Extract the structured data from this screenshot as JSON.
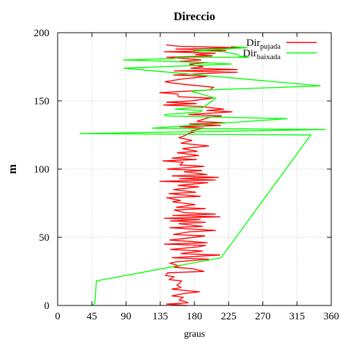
{
  "chart_data": {
    "type": "line",
    "title": "Direccio",
    "xlabel": "graus",
    "ylabel": "m",
    "xlim": [
      0,
      360
    ],
    "ylim": [
      0,
      200
    ],
    "xticks": [
      0,
      45,
      90,
      135,
      180,
      225,
      270,
      315,
      360
    ],
    "yticks": [
      0,
      50,
      100,
      150,
      200
    ],
    "grid": true,
    "legend_position": "top-right",
    "colors": {
      "pujada": "#ff0000",
      "baixada": "#00ff00"
    },
    "series": [
      {
        "name": "Dir",
        "name_sub": "pujada",
        "color": "#ff0000",
        "points": [
          [
            170,
            0
          ],
          [
            143,
            1
          ],
          [
            172,
            2
          ],
          [
            160,
            4
          ],
          [
            165,
            6
          ],
          [
            150,
            7
          ],
          [
            168,
            9
          ],
          [
            187,
            10
          ],
          [
            150,
            12
          ],
          [
            162,
            13
          ],
          [
            157,
            15
          ],
          [
            160,
            16
          ],
          [
            163,
            18
          ],
          [
            147,
            19
          ],
          [
            153,
            21
          ],
          [
            142,
            22
          ],
          [
            145,
            24
          ],
          [
            193,
            25
          ],
          [
            177,
            27
          ],
          [
            153,
            28
          ],
          [
            160,
            29
          ],
          [
            148,
            31
          ],
          [
            156,
            32
          ],
          [
            199,
            34
          ],
          [
            150,
            35
          ],
          [
            214,
            37
          ],
          [
            162,
            38
          ],
          [
            191,
            40
          ],
          [
            148,
            41
          ],
          [
            185,
            43
          ],
          [
            195,
            44
          ],
          [
            140,
            45
          ],
          [
            197,
            46
          ],
          [
            147,
            48
          ],
          [
            165,
            49
          ],
          [
            194,
            51
          ],
          [
            152,
            52
          ],
          [
            173,
            54
          ],
          [
            208,
            55
          ],
          [
            147,
            57
          ],
          [
            191,
            58
          ],
          [
            159,
            60
          ],
          [
            195,
            61
          ],
          [
            148,
            62
          ],
          [
            188,
            63
          ],
          [
            140,
            64
          ],
          [
            214,
            65
          ],
          [
            151,
            66
          ],
          [
            208,
            67
          ],
          [
            168,
            68
          ],
          [
            153,
            70
          ],
          [
            195,
            71
          ],
          [
            156,
            72
          ],
          [
            181,
            74
          ],
          [
            151,
            76
          ],
          [
            162,
            77
          ],
          [
            143,
            79
          ],
          [
            188,
            80
          ],
          [
            146,
            82
          ],
          [
            182,
            83
          ],
          [
            152,
            85
          ],
          [
            186,
            87
          ],
          [
            158,
            88
          ],
          [
            198,
            90
          ],
          [
            134,
            91
          ],
          [
            208,
            92
          ],
          [
            160,
            93
          ],
          [
            212,
            94
          ],
          [
            150,
            95
          ],
          [
            197,
            96
          ],
          [
            166,
            98
          ],
          [
            190,
            99
          ],
          [
            144,
            100
          ],
          [
            193,
            102
          ],
          [
            161,
            103
          ],
          [
            165,
            105
          ],
          [
            138,
            106
          ],
          [
            183,
            107
          ],
          [
            150,
            108
          ],
          [
            186,
            110
          ],
          [
            157,
            112
          ],
          [
            184,
            113
          ],
          [
            164,
            115
          ],
          [
            199,
            117
          ],
          [
            162,
            119
          ],
          [
            177,
            121
          ],
          [
            160,
            123
          ],
          [
            169,
            125
          ],
          [
            171,
            126
          ],
          [
            179,
            127
          ],
          [
            176,
            128
          ],
          [
            193,
            130
          ],
          [
            160,
            131
          ],
          [
            215,
            132
          ],
          [
            173,
            133
          ],
          [
            220,
            134
          ],
          [
            183,
            135
          ],
          [
            200,
            138
          ],
          [
            216,
            139
          ],
          [
            172,
            140
          ],
          [
            230,
            142
          ],
          [
            196,
            143
          ],
          [
            219,
            144
          ],
          [
            186,
            146
          ],
          [
            139,
            147
          ],
          [
            183,
            148
          ],
          [
            143,
            149
          ],
          [
            175,
            150
          ],
          [
            204,
            152
          ],
          [
            159,
            153
          ],
          [
            158,
            155
          ],
          [
            134,
            156
          ],
          [
            200,
            158
          ],
          [
            205,
            160
          ],
          [
            169,
            162
          ],
          [
            153,
            163
          ],
          [
            141,
            164
          ],
          [
            163,
            166
          ],
          [
            181,
            167
          ],
          [
            197,
            168
          ],
          [
            152,
            169
          ],
          [
            189,
            170
          ],
          [
            237,
            171
          ],
          [
            153,
            172
          ],
          [
            237,
            173
          ],
          [
            175,
            174
          ],
          [
            192,
            175
          ],
          [
            181,
            176
          ],
          [
            173,
            177
          ],
          [
            197,
            178
          ],
          [
            160,
            179
          ],
          [
            189,
            180
          ],
          [
            170,
            181
          ],
          [
            143,
            182
          ],
          [
            204,
            183
          ],
          [
            181,
            184
          ],
          [
            208,
            185
          ],
          [
            140,
            186
          ],
          [
            222,
            187
          ],
          [
            155,
            188
          ],
          [
            240,
            189
          ],
          [
            161,
            190
          ],
          [
            143,
            191
          ]
        ]
      },
      {
        "name": "Dir",
        "name_sub": "baixada",
        "color": "#00ff00",
        "points": [
          [
            46,
            0
          ],
          [
            49,
            2
          ],
          [
            51,
            18
          ],
          [
            215,
            35
          ],
          [
            333,
            125
          ],
          [
            29,
            126
          ],
          [
            353,
            129
          ],
          [
            124,
            130
          ],
          [
            302,
            137
          ],
          [
            142,
            139
          ],
          [
            141,
            140
          ],
          [
            167,
            141
          ],
          [
            188,
            142
          ],
          [
            190,
            143
          ],
          [
            154,
            144
          ],
          [
            176,
            145
          ],
          [
            191,
            145
          ],
          [
            208,
            152
          ],
          [
            176,
            157
          ],
          [
            196,
            158
          ],
          [
            346,
            161
          ],
          [
            87,
            174
          ],
          [
            229,
            177
          ],
          [
            195,
            178
          ],
          [
            146,
            179
          ],
          [
            86,
            180
          ],
          [
            152,
            181
          ],
          [
            158,
            182
          ],
          [
            252,
            182
          ],
          [
            238,
            183
          ],
          [
            237,
            184
          ],
          [
            219,
            186
          ],
          [
            178,
            187
          ],
          [
            216,
            188
          ],
          [
            250,
            189
          ],
          [
            228,
            190
          ]
        ]
      }
    ]
  }
}
